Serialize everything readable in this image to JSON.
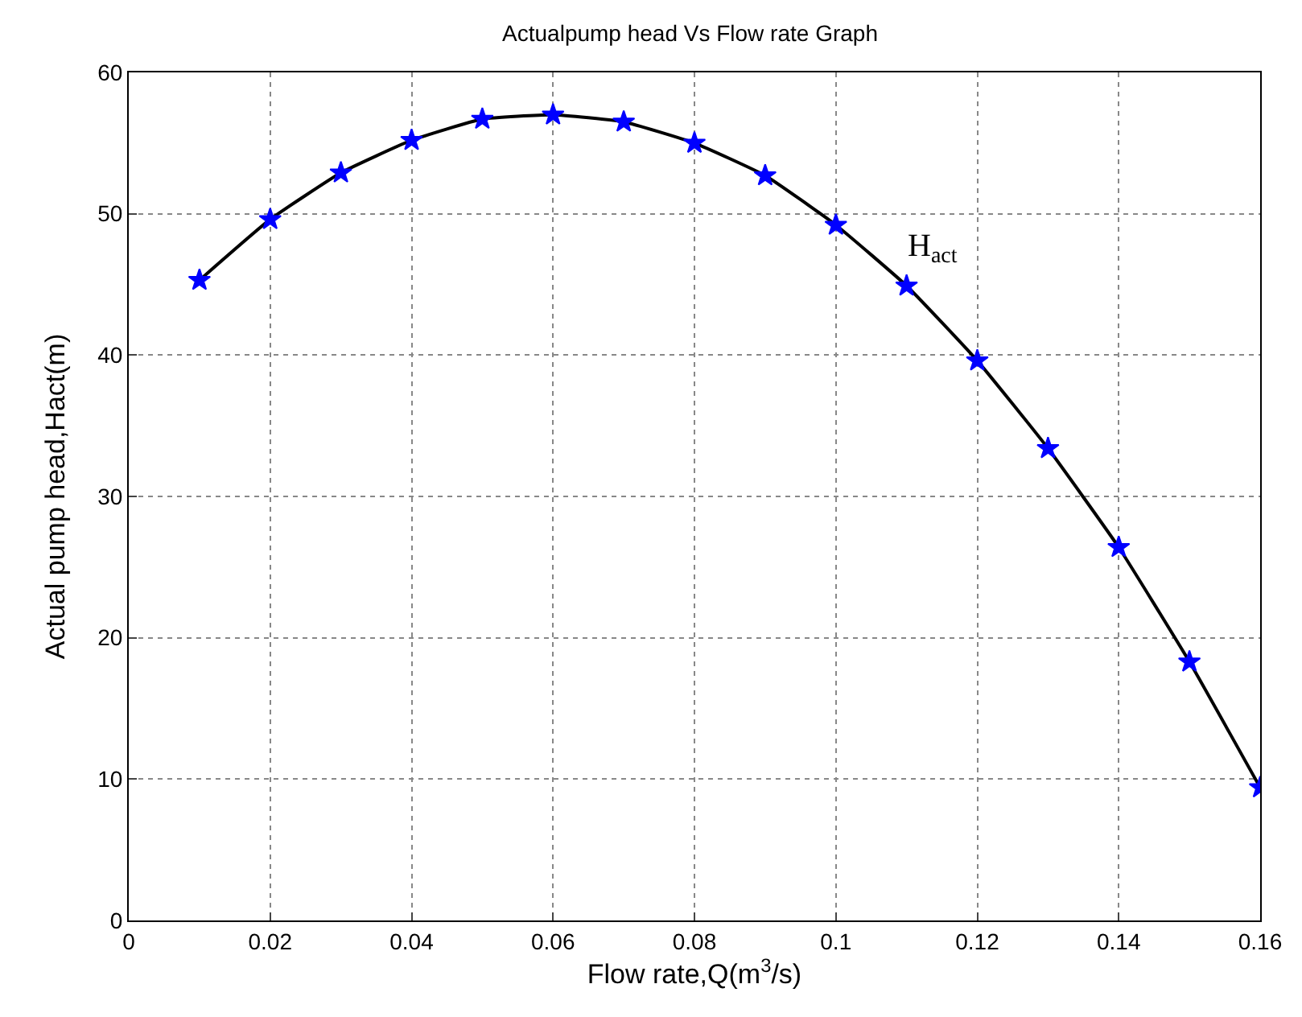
{
  "chart_data": {
    "type": "line",
    "title": "Actualpump head Vs Flow rate Graph",
    "xlabel": "Flow rate,Q(m$^{3}$/s)",
    "ylabel": "Actual pump head,Hact(m)",
    "x": [
      0.01,
      0.02,
      0.03,
      0.04,
      0.05,
      0.06,
      0.07,
      0.08,
      0.09,
      0.1,
      0.11,
      0.12,
      0.13,
      0.14,
      0.15,
      0.16
    ],
    "series": [
      {
        "color": "#000000",
        "colors": [
          "#0000ff",
          "#0000ff",
          "#0000ff",
          "#0000ff",
          "#0000ff",
          "#0000ff",
          "#0000ff",
          "#0000ff",
          "#0000ff",
          "#0000ff",
          "#0000ff",
          "#0000ff",
          "#0000ff",
          "#0000ff",
          "#0000ff",
          "#0000ff"
        ],
        "values": [
          45.3,
          49.6,
          52.9,
          55.2,
          56.7,
          57.0,
          56.5,
          55.0,
          52.7,
          49.2,
          44.9,
          39.6,
          33.4,
          26.4,
          18.3,
          9.4
        ]
      }
    ],
    "xlim": [
      0,
      0.16
    ],
    "xticks": [
      0,
      0.02,
      0.04,
      0.06,
      0.08,
      0.1,
      0.12,
      0.14,
      0.16
    ],
    "ylim": [
      0,
      60
    ],
    "yticks": [
      0,
      10,
      20,
      30,
      40,
      50,
      60
    ],
    "annotations": [
      "H$_{act}$"
    ],
    "grid": true,
    "marker": "star",
    "line_style": "solid"
  }
}
